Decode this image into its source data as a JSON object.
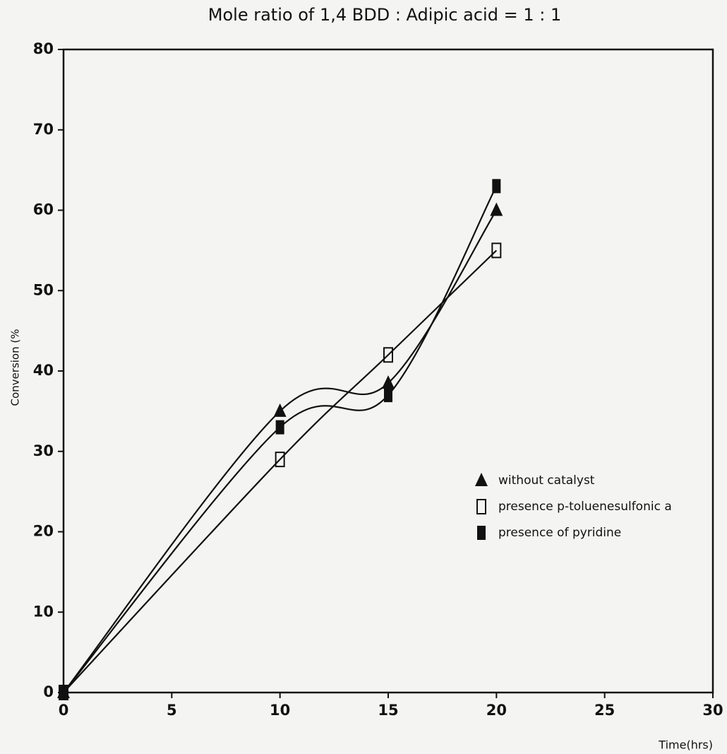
{
  "chart_data": {
    "type": "line",
    "title": "Mole ratio of 1,4 BDD : Adipic acid = 1 : 1",
    "x_label": "Time(hrs)",
    "y_label": "Conversion (%",
    "x": [
      0,
      10,
      15,
      20
    ],
    "series": [
      {
        "name": "without catalyst",
        "color": "#111111",
        "marker": "triangle",
        "values": [
          0,
          35,
          38.5,
          60
        ]
      },
      {
        "name": "presence p-toluenesulfonic a",
        "color": "#111111",
        "marker": "open-square",
        "values": [
          0,
          29,
          42,
          55
        ]
      },
      {
        "name": "presence of pyridine",
        "color": "#111111",
        "marker": "square",
        "values": [
          0,
          33,
          37,
          63
        ]
      }
    ],
    "xlim": [
      0,
      30
    ],
    "xticks": [
      0,
      5,
      10,
      15,
      20,
      25,
      30
    ],
    "ylim": [
      0,
      80
    ],
    "yticks": [
      0,
      10,
      20,
      30,
      40,
      50,
      60,
      70,
      80
    ],
    "grid": false,
    "smooth": true
  }
}
